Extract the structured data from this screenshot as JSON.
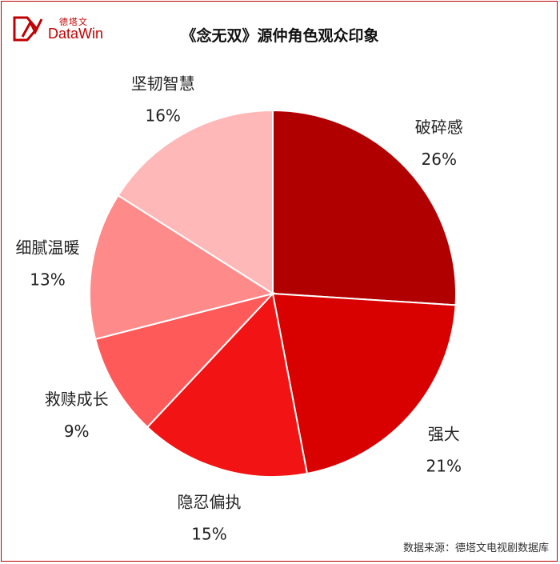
{
  "title": "《念无双》源仲角色观众印象",
  "logo": {
    "cn": "德塔文",
    "en": "DataWin"
  },
  "source": "数据来源：德塔文电视剧数据库",
  "colors": {
    "brand": "#c00000"
  },
  "chart_data": {
    "type": "pie",
    "title": "《念无双》源仲角色观众印象",
    "start": "12 o'clock, clockwise",
    "slices": [
      {
        "label": "破碎感",
        "value": 26,
        "display": "26%",
        "color": "#b00000"
      },
      {
        "label": "强大",
        "value": 21,
        "display": "21%",
        "color": "#d90000"
      },
      {
        "label": "隐忍偏执",
        "value": 15,
        "display": "15%",
        "color": "#f21414"
      },
      {
        "label": "救赎成长",
        "value": 9,
        "display": "9%",
        "color": "#ff5a5a"
      },
      {
        "label": "细腻温暖",
        "value": 13,
        "display": "13%",
        "color": "#ff8a8a"
      },
      {
        "label": "坚韧智慧",
        "value": 16,
        "display": "16%",
        "color": "#ffb8b8"
      }
    ]
  }
}
